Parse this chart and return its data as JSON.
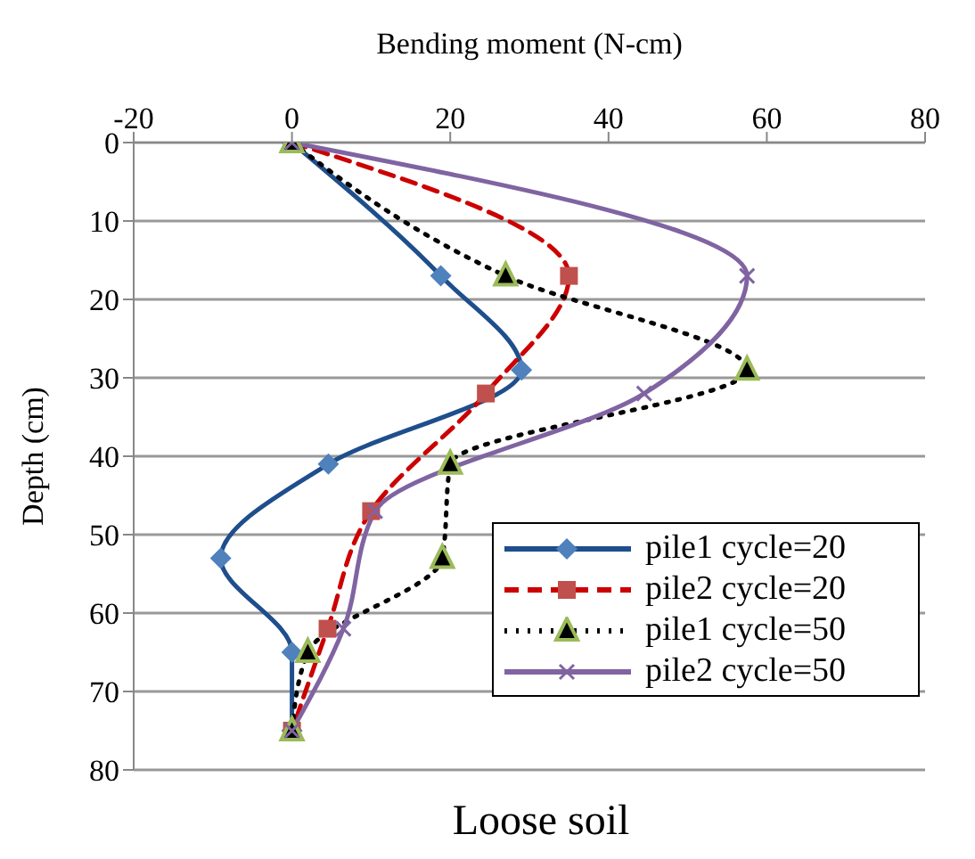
{
  "chart_data": {
    "type": "line",
    "xlabel": "Bending  moment (N-cm)",
    "ylabel": "Depth (cm)",
    "annotations": [
      "Loose soil"
    ],
    "xlim": [
      -20,
      80
    ],
    "xticks": [
      -20,
      0,
      20,
      40,
      60,
      80
    ],
    "ylim": [
      80,
      0
    ],
    "yticks": [
      0,
      10,
      20,
      30,
      40,
      50,
      60,
      70,
      80
    ],
    "grid": "y",
    "legend": "bottom right",
    "series": [
      {
        "name": "pile1  cycle=20",
        "color": "#1f4e8c",
        "marker": "diamond",
        "line_style": "solid",
        "x": [
          0,
          18.8,
          29,
          4.6,
          -9,
          0,
          0
        ],
        "values": [
          0,
          17,
          29,
          41,
          53,
          65,
          75
        ]
      },
      {
        "name": "pile2  cycle=20",
        "color": "#cc0000",
        "marker": "square",
        "line_style": "dashed",
        "x": [
          0,
          35,
          24.5,
          10,
          4.5,
          0
        ],
        "values": [
          0,
          17,
          32,
          47,
          62,
          75
        ]
      },
      {
        "name": "pile1  cycle=50",
        "color": "#000000",
        "marker": "triangle",
        "line_style": "dotted",
        "x": [
          0,
          27,
          57.5,
          20,
          19,
          2,
          0
        ],
        "values": [
          0,
          17,
          29,
          41,
          53,
          65,
          75
        ]
      },
      {
        "name": "pile2  cycle=50",
        "color": "#8064a2",
        "marker": "cross",
        "line_style": "solid",
        "x": [
          0,
          57.5,
          44.5,
          10.5,
          6.5,
          0
        ],
        "values": [
          0,
          17,
          32,
          47,
          62,
          75
        ]
      }
    ]
  }
}
